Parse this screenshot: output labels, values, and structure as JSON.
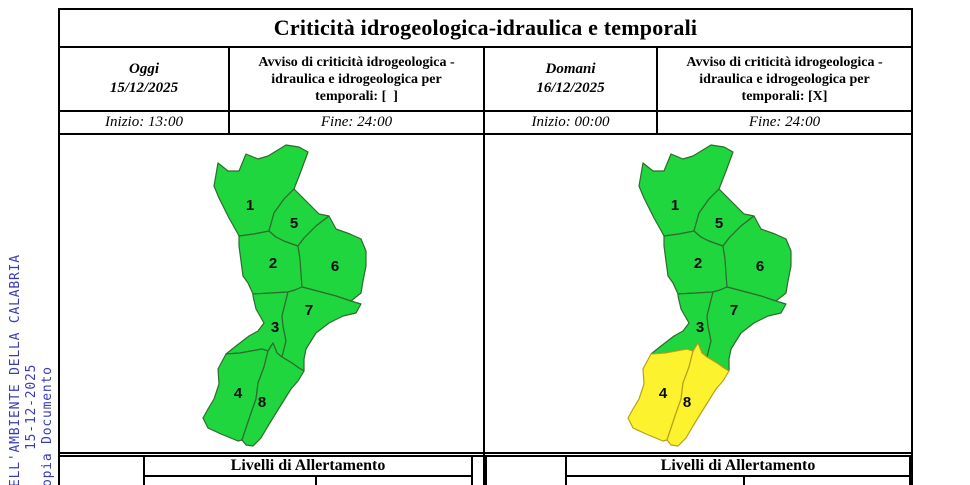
{
  "document": {
    "title": "Criticità idrogeologica-idraulica e temporali",
    "columns": {
      "today": {
        "day": "Oggi",
        "date": "15/12/2025",
        "avviso": "Avviso di criticità idrogeologica - idraulica e idrogeologica per temporali: [  ]",
        "inizio": "Inizio: 13:00",
        "fine": "Fine: 24:00"
      },
      "tomorrow": {
        "day": "Domani",
        "date": "16/12/2025",
        "avviso": "Avviso di criticità idrogeologica - idraulica e idrogeologica per temporali: [X]",
        "inizio": "Inizio: 00:00",
        "fine": "Fine: 24:00"
      }
    },
    "legend": {
      "header": "Livelli di Allertamento"
    }
  },
  "maps": {
    "palette": {
      "green": "#1fd63e",
      "yellow": "#fdf22e",
      "green_stroke": "#2e6b2e",
      "yellow_stroke": "#b9a018"
    },
    "zones": [
      {
        "label": "1",
        "today": "green",
        "tomorrow": "green"
      },
      {
        "label": "2",
        "today": "green",
        "tomorrow": "green"
      },
      {
        "label": "3",
        "today": "green",
        "tomorrow": "green"
      },
      {
        "label": "4",
        "today": "green",
        "tomorrow": "yellow"
      },
      {
        "label": "5",
        "today": "green",
        "tomorrow": "green"
      },
      {
        "label": "6",
        "today": "green",
        "tomorrow": "green"
      },
      {
        "label": "7",
        "today": "green",
        "tomorrow": "green"
      },
      {
        "label": "8",
        "today": "green",
        "tomorrow": "yellow"
      }
    ]
  },
  "watermark": {
    "color": "#3b3bb5",
    "line1": "ELL'AMBIENTE DELLA CALABRIA",
    "line2": "15-12-2025",
    "line3": "opia Documento"
  }
}
